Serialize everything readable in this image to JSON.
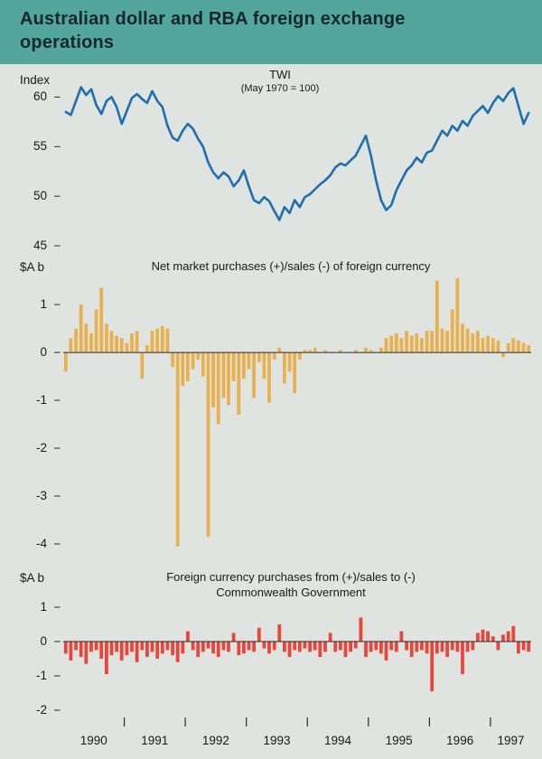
{
  "header": {
    "title": "Australian dollar and RBA foreign exchange operations"
  },
  "colors": {
    "header_bg": "#52a69b",
    "background": "#dfe4e0",
    "twi_line": "#1d6fb0",
    "market_bars": "#e9b050",
    "government_bars": "#e8463c",
    "axis_text": "#1a1a1a",
    "zero_line": "#2a2a2a"
  },
  "x_axis": {
    "years": [
      "1990",
      "1991",
      "1992",
      "1993",
      "1994",
      "1995",
      "1996",
      "1997"
    ],
    "frequency": "monthly",
    "start": "1990-01",
    "end": "1997-08"
  },
  "chart_data": [
    {
      "type": "line",
      "title": "TWI",
      "subtitle": "(May 1970 = 100)",
      "ylabel": "Index",
      "yticks": [
        60,
        55,
        50,
        45
      ],
      "ylim": [
        45,
        62.5
      ],
      "color": "#1d6fb0",
      "values": [
        58.5,
        58.2,
        59.6,
        61.0,
        60.2,
        60.8,
        59.2,
        58.3,
        59.6,
        60.0,
        59.0,
        57.3,
        58.6,
        59.9,
        60.3,
        59.8,
        59.4,
        60.6,
        59.6,
        59.0,
        57.1,
        55.9,
        55.6,
        56.6,
        57.3,
        56.8,
        55.8,
        55.0,
        53.4,
        52.4,
        51.8,
        52.4,
        52.0,
        51.0,
        51.6,
        52.6,
        51.0,
        49.6,
        49.3,
        49.9,
        49.5,
        48.5,
        47.6,
        48.9,
        48.3,
        49.6,
        48.9,
        49.9,
        50.2,
        50.7,
        51.2,
        51.6,
        52.1,
        52.9,
        53.3,
        53.1,
        53.6,
        54.1,
        55.1,
        56.1,
        54.1,
        51.6,
        49.6,
        48.6,
        49.1,
        50.6,
        51.6,
        52.6,
        53.1,
        53.9,
        53.4,
        54.4,
        54.6,
        55.6,
        56.6,
        56.1,
        57.1,
        56.6,
        57.6,
        57.1,
        58.1,
        58.6,
        59.1,
        58.4,
        59.4,
        60.1,
        59.6,
        60.4,
        60.9,
        59.1,
        57.3,
        58.4
      ]
    },
    {
      "type": "bar",
      "title": "Net market purchases (+)/sales (-) of foreign currency",
      "ylabel": "$A b",
      "yticks": [
        1,
        0,
        -1,
        -2,
        -3,
        -4
      ],
      "ylim": [
        -4.34,
        1.7
      ],
      "color": "#e9b050",
      "values": [
        -0.4,
        0.3,
        0.5,
        1.0,
        0.6,
        0.4,
        0.9,
        1.35,
        0.6,
        0.45,
        0.35,
        0.3,
        0.2,
        0.4,
        0.45,
        -0.55,
        0.15,
        0.45,
        0.5,
        0.55,
        0.5,
        -0.3,
        -4.05,
        -0.7,
        -0.6,
        -0.35,
        -0.15,
        -0.5,
        -3.85,
        -1.15,
        -1.5,
        -0.95,
        -1.1,
        -0.6,
        -1.3,
        -0.55,
        -0.35,
        -0.95,
        -0.2,
        -0.55,
        -1.05,
        -0.15,
        0.1,
        -0.65,
        -0.4,
        -0.85,
        -0.15,
        0.05,
        0.05,
        0.1,
        0.0,
        0.05,
        0.0,
        0.0,
        0.05,
        0.0,
        0.0,
        0.05,
        0.0,
        0.1,
        0.05,
        0.0,
        0.1,
        0.3,
        0.35,
        0.4,
        0.3,
        0.45,
        0.35,
        0.4,
        0.3,
        0.45,
        0.45,
        1.5,
        0.5,
        0.45,
        0.9,
        1.55,
        0.6,
        0.5,
        0.4,
        0.45,
        0.3,
        0.35,
        0.3,
        0.25,
        -0.1,
        0.2,
        0.3,
        0.25,
        0.2,
        0.15
      ]
    },
    {
      "type": "bar",
      "title_lines": [
        "Foreign currency purchases from (+)/sales to (-)",
        "Commonwealth Government"
      ],
      "ylabel": "$A b",
      "yticks": [
        1,
        0,
        -1,
        -2
      ],
      "ylim": [
        -2.15,
        1.25
      ],
      "color": "#e8463c",
      "values": [
        -0.35,
        -0.55,
        -0.25,
        -0.45,
        -0.65,
        -0.3,
        -0.25,
        -0.5,
        -0.95,
        -0.4,
        -0.3,
        -0.55,
        -0.4,
        -0.3,
        -0.6,
        -0.25,
        -0.45,
        -0.3,
        -0.5,
        -0.35,
        -0.25,
        -0.4,
        -0.6,
        -0.35,
        0.3,
        -0.25,
        -0.45,
        -0.3,
        -0.2,
        -0.35,
        -0.45,
        -0.25,
        -0.3,
        0.25,
        -0.4,
        -0.35,
        -0.25,
        -0.3,
        0.4,
        -0.2,
        -0.35,
        -0.25,
        0.5,
        -0.3,
        -0.45,
        -0.25,
        -0.3,
        -0.2,
        -0.3,
        -0.25,
        -0.45,
        -0.3,
        0.25,
        -0.3,
        -0.25,
        -0.45,
        -0.3,
        -0.2,
        0.7,
        -0.45,
        -0.3,
        -0.25,
        -0.35,
        -0.55,
        -0.25,
        -0.3,
        0.3,
        -0.25,
        -0.45,
        -0.3,
        -0.25,
        -0.35,
        -1.45,
        -0.35,
        -0.3,
        -0.45,
        -0.25,
        -0.3,
        -0.95,
        -0.3,
        -0.25,
        0.25,
        0.35,
        0.3,
        0.15,
        -0.25,
        0.2,
        0.3,
        0.45,
        -0.35,
        -0.25,
        -0.3
      ]
    }
  ]
}
